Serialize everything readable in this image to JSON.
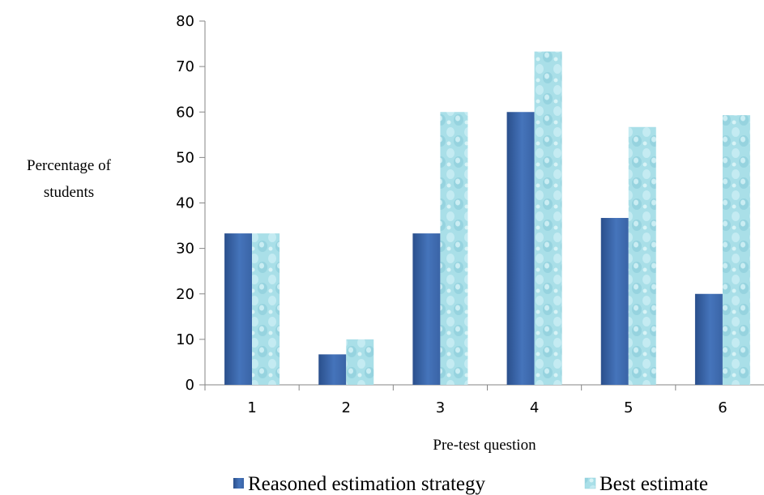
{
  "chart_data": {
    "type": "bar",
    "xlabel": "Pre-test question",
    "ylabel_lines": [
      "Percentage of",
      "students"
    ],
    "categories": [
      "1",
      "2",
      "3",
      "4",
      "5",
      "6"
    ],
    "ylim": [
      0,
      80
    ],
    "yticks": [
      0,
      10,
      20,
      30,
      40,
      50,
      60,
      70,
      80
    ],
    "grid": false,
    "legend_position": "bottom",
    "series": [
      {
        "name": "Reasoned estimation strategy",
        "color": "#3a64a6",
        "values": [
          33.3,
          6.7,
          33.3,
          60.0,
          36.7,
          20.0
        ]
      },
      {
        "name": "Best estimate",
        "color": "#a8dde6",
        "values": [
          33.3,
          10.0,
          60.0,
          73.3,
          56.7,
          59.3
        ]
      }
    ]
  }
}
